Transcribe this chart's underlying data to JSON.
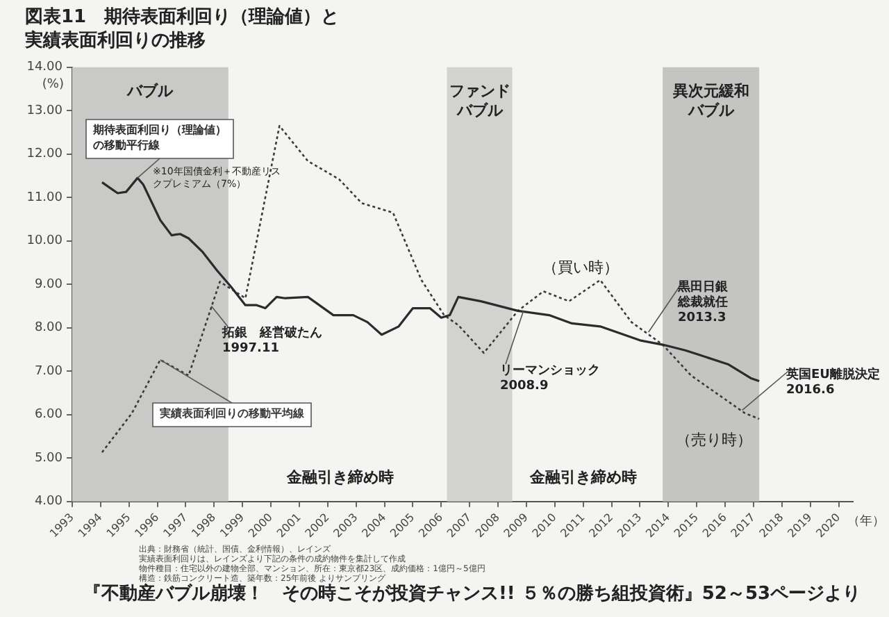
{
  "chart_data": {
    "type": "line",
    "title": "図表11　期待表面利回り（理論値）と実績表面利回りの推移",
    "ylabel": "(%)",
    "xlabel": "（年）",
    "xlim": [
      1993,
      2020.5
    ],
    "xticks": [
      1993,
      1994,
      1995,
      1996,
      1997,
      1998,
      1999,
      2000,
      2001,
      2002,
      2003,
      2004,
      2005,
      2006,
      2007,
      2008,
      2009,
      2010,
      2011,
      2012,
      2013,
      2014,
      2015,
      2016,
      2017,
      2018,
      2019,
      2020
    ],
    "ylim": [
      4,
      14
    ],
    "yticks": [
      {
        "value": 4,
        "label": "4.00"
      },
      {
        "value": 5,
        "label": "5.00"
      },
      {
        "value": 6,
        "label": "6.00"
      },
      {
        "value": 7,
        "label": "7.00"
      },
      {
        "value": 8,
        "label": "8.00"
      },
      {
        "value": 9,
        "label": "9.00"
      },
      {
        "value": 10,
        "label": "10.00"
      },
      {
        "value": 11,
        "label": "11.00"
      },
      {
        "value": 12,
        "label": "12.00"
      },
      {
        "value": 13,
        "label": "13.00"
      },
      {
        "value": 14,
        "label": "14.00"
      }
    ],
    "grid": false,
    "legend": false,
    "series": [
      {
        "name": "期待表面利回り（理論値）の移動平行線",
        "color": "#2b2b2b",
        "line_style": "solid",
        "x": [
          1994.05,
          1994.4,
          1994.6,
          1994.9,
          1995.3,
          1995.5,
          1996.1,
          1996.5,
          1996.8,
          1997.1,
          1997.6,
          1998.1,
          1998.6,
          1999.1,
          1999.5,
          1999.8,
          2000.2,
          2000.5,
          2001.3,
          2002.2,
          2002.9,
          2003.4,
          2003.9,
          2004.5,
          2005.0,
          2005.6,
          2006.0,
          2006.3,
          2006.6,
          2007.4,
          2008.7,
          2009.8,
          2010.6,
          2011.6,
          2013.0,
          2013.8,
          2014.6,
          2016.1,
          2016.9,
          2017.2
        ],
        "values": [
          11.35,
          11.19,
          11.1,
          11.13,
          11.45,
          11.3,
          10.48,
          10.13,
          10.16,
          10.06,
          9.74,
          9.32,
          8.94,
          8.52,
          8.52,
          8.45,
          8.71,
          8.68,
          8.71,
          8.29,
          8.29,
          8.13,
          7.84,
          8.03,
          8.45,
          8.45,
          8.23,
          8.29,
          8.71,
          8.61,
          8.39,
          8.29,
          8.1,
          8.03,
          7.71,
          7.61,
          7.48,
          7.16,
          6.84,
          6.77
        ]
      },
      {
        "name": "実績表面利回りの移動平均線",
        "color": "#3a3a3a",
        "line_style": "dotted",
        "x": [
          1994.05,
          1995.1,
          1996.1,
          1997.1,
          1998.2,
          1999.1,
          2000.3,
          2001.3,
          2002.4,
          2003.2,
          2004.3,
          2005.3,
          2006.1,
          2006.6,
          2007.5,
          2008.7,
          2009.6,
          2010.5,
          2011.6,
          2012.7,
          2013.8,
          2014.8,
          2016.7,
          2017.2
        ],
        "values": [
          5.13,
          6.03,
          7.26,
          6.9,
          9.06,
          8.68,
          12.65,
          11.84,
          11.42,
          10.87,
          10.65,
          9.1,
          8.29,
          8.06,
          7.42,
          8.39,
          8.84,
          8.61,
          9.1,
          8.13,
          7.61,
          6.9,
          6.03,
          5.9
        ]
      }
    ],
    "bands": [
      {
        "axis": "x",
        "from": 1993,
        "to": 1998.5,
        "label": "バブル",
        "color": "#c9c9c7"
      },
      {
        "axis": "x",
        "from": 2006.2,
        "to": 2008.5,
        "label": "ファンドバブル",
        "color": "#d2d2d0"
      },
      {
        "axis": "x",
        "from": 2013.8,
        "to": 2017.2,
        "label": "異次元緩和バブル",
        "color": "#c4c4c2"
      }
    ],
    "annotations": [
      "※10年国債金利＋不動産リスクプレミアム（7%）",
      {
        "text": "拓銀　経営破たん1997.11",
        "x": 1997.9,
        "y": 8.5
      },
      {
        "text": "リーマンショック2008.9",
        "x": 2008.9,
        "y": 8.4
      },
      {
        "text": "黒田日銀総裁就任2013.3",
        "x": 2013.3,
        "y": 7.9
      },
      {
        "text": "英国EU離脱決定2016.6",
        "x": 2016.6,
        "y": 6.1
      },
      "（買い時）",
      "（売り時）",
      "金融引き締め時",
      "金融引き締め時",
      "出典：財務省（統計、国債、金利情報）、レインズ",
      "実績表面利回りは、レインズより下記の条件の成約物件を集計して作成",
      "物件種目：住宅以外の建物全部、マンション、所在：東京都23区、成約価格：1億円～5億円",
      "構造：鉄筋コンクリート造、築年数：25年前後 よりサンプリング",
      "『不動産バブル崩壊！　その時こそが投資チャンス!! ５％の勝ち組投資術』52～53ページより"
    ]
  }
}
